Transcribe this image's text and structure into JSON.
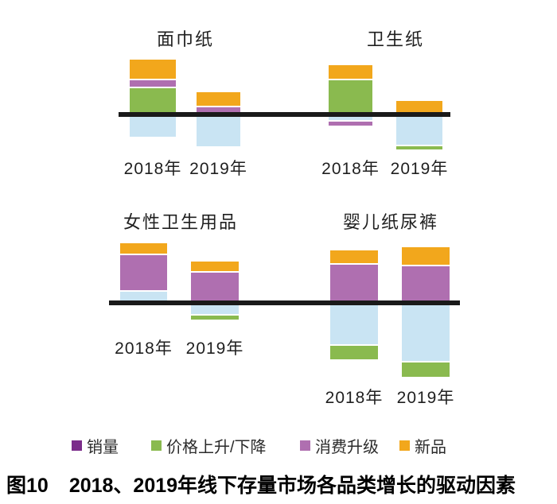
{
  "figure": {
    "caption_prefix": "图10",
    "caption_text": "2018、2019年线下存量市场各品类增长的驱动因素"
  },
  "colors": {
    "purple": "#7B2C8A",
    "green": "#8ABA4F",
    "mauve": "#AF6FB0",
    "lightblue": "#C9E4F3",
    "orange": "#F2A71C",
    "axis": "#1A1A1A"
  },
  "legend": {
    "items": [
      {
        "label": "销量",
        "color": "purple"
      },
      {
        "label": "价格上升/下降",
        "color": "green"
      },
      {
        "label": "消费升级",
        "color": "mauve"
      },
      {
        "label": "新品",
        "color": "orange"
      }
    ]
  },
  "chart_data": {
    "type": "bar",
    "variant": "diverging-stacked",
    "title": "2018、2019年线下存量市场各品类增长的驱动因素",
    "axis_note": "no numeric axis shown; baseline = 0; values are relative units estimated from segment heights",
    "legend_position": "bottom",
    "series_order": [
      "销量",
      "价格上升/下降",
      "消费升级",
      "新品"
    ],
    "series_bar_colors": {
      "销量": "lightblue",
      "价格上升/下降": "green",
      "消费升级": "mauve",
      "新品": "orange"
    },
    "charts": [
      {
        "title": "面巾纸",
        "x_labels": [
          "2018年",
          "2019年"
        ],
        "series": [
          {
            "name": "销量",
            "values": [
              -25,
              -37
            ]
          },
          {
            "name": "价格上升/下降",
            "values": [
              30,
              0
            ]
          },
          {
            "name": "消费升级",
            "values": [
              8,
              6
            ]
          },
          {
            "name": "新品",
            "values": [
              24,
              17
            ]
          }
        ]
      },
      {
        "title": "卫生纸",
        "x_labels": [
          "2018年",
          "2019年"
        ],
        "series": [
          {
            "name": "销量",
            "values": [
              -4,
              -35
            ]
          },
          {
            "name": "价格上升/下降",
            "values": [
              40,
              -4
            ]
          },
          {
            "name": "消费升级",
            "values": [
              -5,
              0
            ]
          },
          {
            "name": "新品",
            "values": [
              17,
              14
            ]
          }
        ]
      },
      {
        "title": "女性卫生用品",
        "x_labels": [
          "2018年",
          "2019年"
        ],
        "series": [
          {
            "name": "销量",
            "values": [
              11,
              -11
            ]
          },
          {
            "name": "价格上升/下降",
            "values": [
              0,
              -5
            ]
          },
          {
            "name": "消费升级",
            "values": [
              44,
              35
            ]
          },
          {
            "name": "新品",
            "values": [
              13,
              12
            ]
          }
        ]
      },
      {
        "title": "婴儿纸尿裤",
        "x_labels": [
          "2018年",
          "2019年"
        ],
        "series": [
          {
            "name": "销量",
            "values": [
              -49,
              -70
            ]
          },
          {
            "name": "价格上升/下降",
            "values": [
              -17,
              -18
            ]
          },
          {
            "name": "消费升级",
            "values": [
              45,
              43
            ]
          },
          {
            "name": "新品",
            "values": [
              16,
              22
            ]
          }
        ]
      }
    ]
  }
}
